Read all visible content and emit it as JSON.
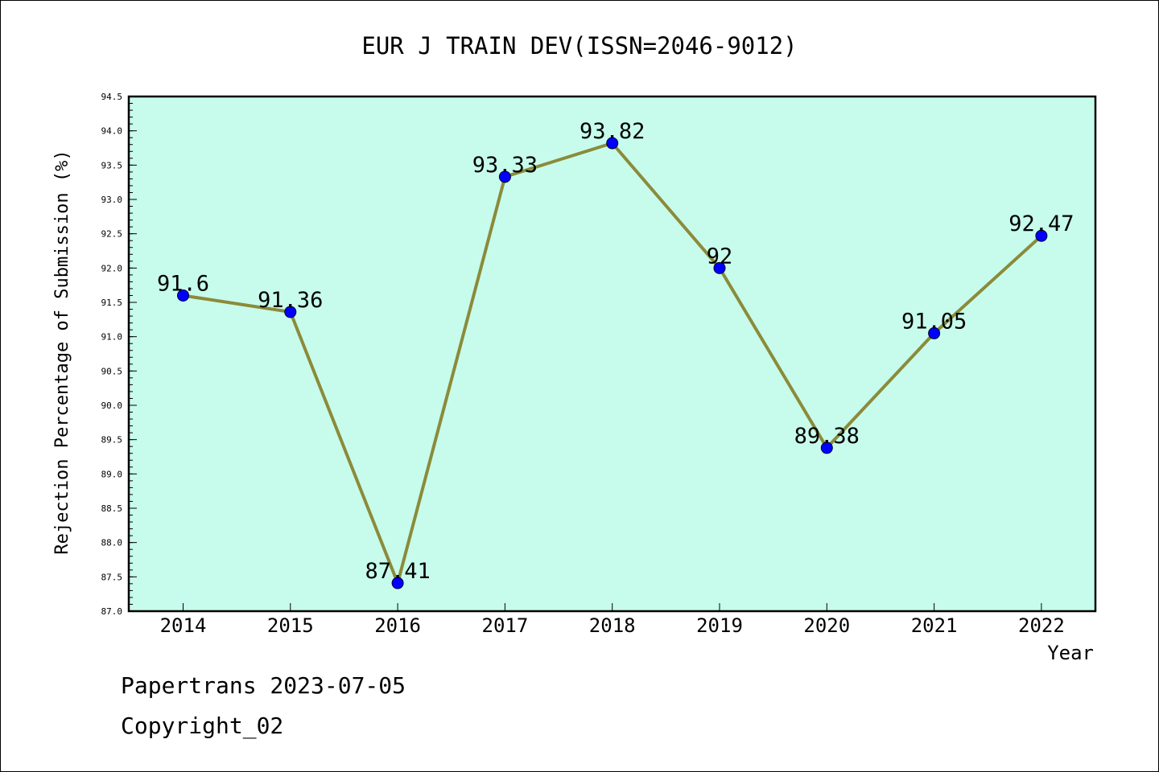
{
  "chart_data": {
    "type": "line",
    "title": "EUR J TRAIN DEV(ISSN=2046-9012)",
    "xlabel": "Year",
    "ylabel": "Rejection Percentage of Submission (%)",
    "categories": [
      "2014",
      "2015",
      "2016",
      "2017",
      "2018",
      "2019",
      "2020",
      "2021",
      "2022"
    ],
    "values": [
      91.6,
      91.36,
      87.41,
      93.33,
      93.82,
      92,
      89.38,
      91.05,
      92.47
    ],
    "data_labels": [
      "91.6",
      "91.36",
      "87.41",
      "93.33",
      "93.82",
      "92",
      "89.38",
      "91.05",
      "92.47"
    ],
    "ylim": [
      87.0,
      94.5
    ],
    "yticks": [
      "87.0",
      "87.5",
      "88.0",
      "88.5",
      "89.0",
      "89.5",
      "90.0",
      "90.5",
      "91.0",
      "91.5",
      "92.0",
      "92.5",
      "93.0",
      "93.5",
      "94.0",
      "94.5"
    ],
    "grid": false,
    "legend": "none",
    "colors": {
      "plot_background": "#c7fcec",
      "line": "#8b8b3a",
      "marker": "#0000ff",
      "axis": "#000000"
    }
  },
  "footer": {
    "source": "Papertrans 2023-07-05",
    "copyright": "Copyright_02"
  }
}
